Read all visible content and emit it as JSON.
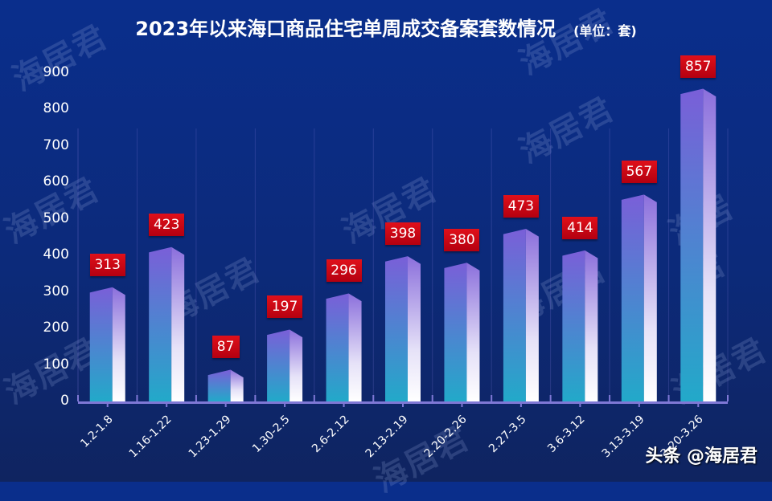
{
  "header": {
    "title": "2023年以来海口商品住宅单周成交备案套数情况",
    "unit": "(单位：套)"
  },
  "watermark": {
    "text": "海居君"
  },
  "credit": {
    "text": "头条 @海居君"
  },
  "colors": {
    "background": "#0c2a7a",
    "axis": "#7f78d6",
    "bar_top": "#7a5fd8",
    "bar_bottom": "#22a9c9",
    "bar_side_light": "#ffffff",
    "label_bg": "#d10a16"
  },
  "chart_data": {
    "type": "bar",
    "title": "2023年以来海口商品住宅单周成交备案套数情况",
    "subtitle": "(单位：套)",
    "xlabel": "",
    "ylabel": "套",
    "categories": [
      "1.2-1.8",
      "1.16-1.22",
      "1.23-1.29",
      "1.30-2.5",
      "2.6-2.12",
      "2.13-2.19",
      "2.20-2.26",
      "2.27-3.5",
      "3.6-3.12",
      "3.13-3.19",
      "3.20-3.26"
    ],
    "values": [
      313,
      423,
      87,
      197,
      296,
      398,
      380,
      473,
      414,
      567,
      857
    ],
    "ylim": [
      0,
      900
    ],
    "yticks": [
      0,
      100,
      200,
      300,
      400,
      500,
      600,
      700,
      800,
      900
    ],
    "grid": false,
    "legend": null,
    "data_labels": true
  }
}
